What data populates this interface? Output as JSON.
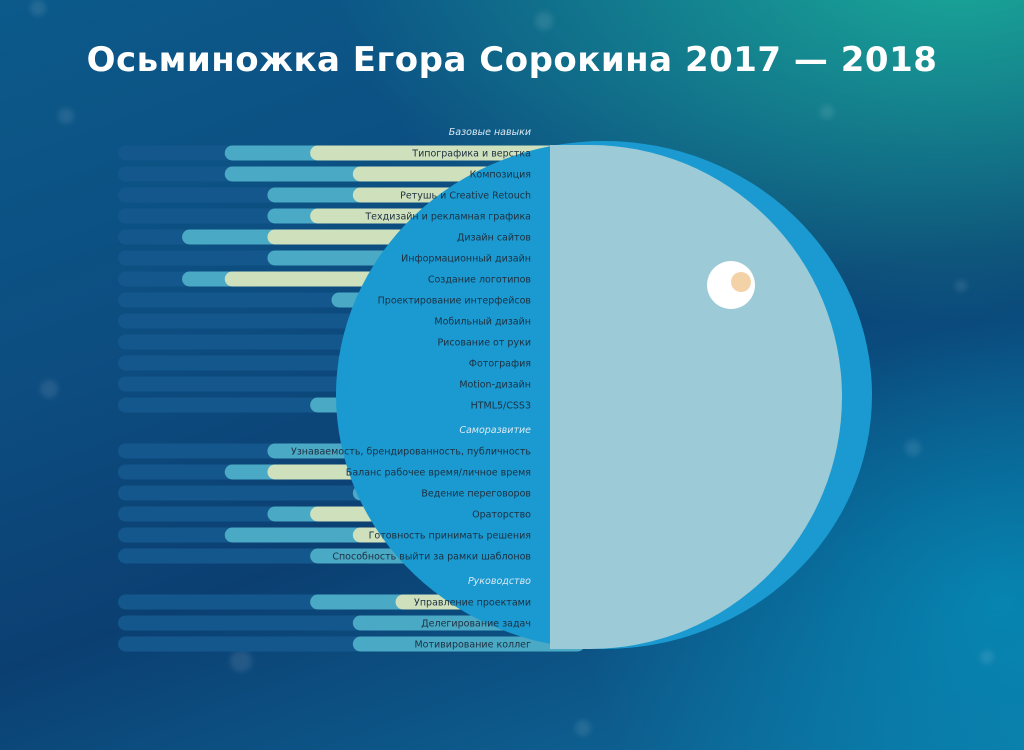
{
  "title": "Осьминожка Егора Сорокина 2017 — 2018",
  "colors": {
    "track": "#14578c",
    "outer": "#4aa9c4",
    "inner": "#cfe0bd",
    "head": "#9ccad6",
    "head_rim": "#1a9ad0",
    "label": "#1d2f40",
    "section": "#dbe9f2"
  },
  "chart_data": {
    "type": "bar",
    "orientation": "horizontal",
    "scale": [
      0,
      10
    ],
    "series": [
      {
        "name": "",
        "role": "outer"
      },
      {
        "name": "",
        "role": "inner"
      }
    ],
    "groups": [
      {
        "name": "Базовые навыки",
        "items": [
          {
            "label": "Типографика и верстка",
            "outer": 7.5,
            "inner": 5.5
          },
          {
            "label": "Композиция",
            "outer": 7.5,
            "inner": 4.5
          },
          {
            "label": "Ретушь и Creative Retouch",
            "outer": 6.5,
            "inner": 4.5
          },
          {
            "label": "Техдизайн и рекламная графика",
            "outer": 6.5,
            "inner": 5.5
          },
          {
            "label": "Дизайн сайтов",
            "outer": 8.5,
            "inner": 6.5
          },
          {
            "label": "Информационный дизайн",
            "outer": 6.5,
            "inner": 3.5
          },
          {
            "label": "Создание логотипов",
            "outer": 8.5,
            "inner": 7.5
          },
          {
            "label": "Проектирование интерфейсов",
            "outer": 5.0,
            "inner": 1.5
          },
          {
            "label": "Мобильный дизайн",
            "outer": 4.5,
            "inner": 1.0
          },
          {
            "label": "Рисование от руки",
            "outer": 4.5,
            "inner": 3.5
          },
          {
            "label": "Фотография",
            "outer": 4.0,
            "inner": 3.5
          },
          {
            "label": "Motion-дизайн",
            "outer": 1.5,
            "inner": 1.0
          },
          {
            "label": "HTML5/CSS3",
            "outer": 5.5,
            "inner": 4.5
          }
        ]
      },
      {
        "name": "Саморазвитие",
        "items": [
          {
            "label": "Узнаваемость, брендированность, публичность",
            "outer": 6.5,
            "inner": 0
          },
          {
            "label": "Баланс рабочее время/личное время",
            "outer": 7.5,
            "inner": 6.5
          },
          {
            "label": "Ведение переговоров",
            "outer": 4.5,
            "inner": 1.0
          },
          {
            "label": "Ораторство",
            "outer": 6.5,
            "inner": 5.5
          },
          {
            "label": "Готовность принимать решения",
            "outer": 7.5,
            "inner": 4.5
          },
          {
            "label": "Способность выйти за рамки шаблонов",
            "outer": 5.5,
            "inner": 1.0
          }
        ]
      },
      {
        "name": "Руководство",
        "items": [
          {
            "label": "Управление проектами",
            "outer": 5.5,
            "inner": 3.5
          },
          {
            "label": "Делегирование задач",
            "outer": 4.5,
            "inner": 1.0
          },
          {
            "label": "Мотивирование коллег",
            "outer": 4.5,
            "inner": 0
          }
        ]
      }
    ]
  }
}
